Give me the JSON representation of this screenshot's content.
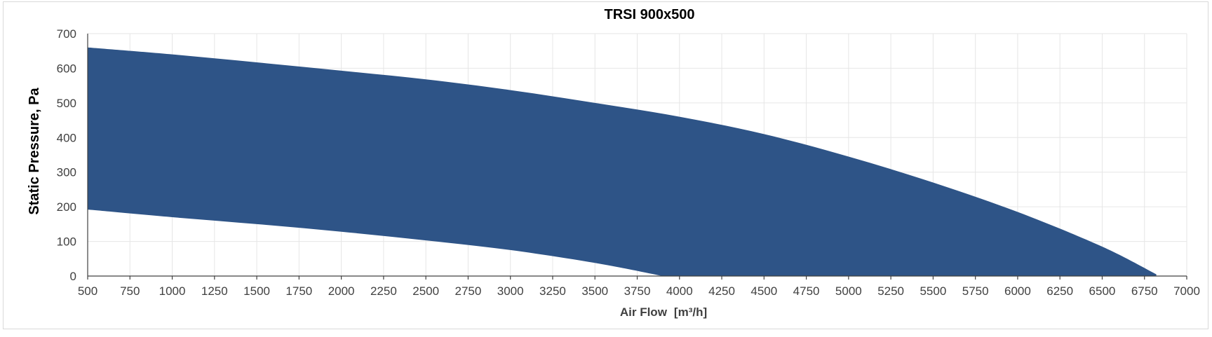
{
  "chart_data": {
    "type": "area",
    "title": "TRSI 900x500",
    "xlabel_main": "Air Flow",
    "xlabel_unit": "[m³/h]",
    "ylabel": "Static Pressure, Pa",
    "xlim": [
      500,
      7000
    ],
    "ylim": [
      0,
      700
    ],
    "x_ticks": [
      500,
      750,
      1000,
      1250,
      1500,
      1750,
      2000,
      2250,
      2500,
      2750,
      3000,
      3250,
      3500,
      3750,
      4000,
      4250,
      4500,
      4750,
      5000,
      5250,
      5500,
      5750,
      6000,
      6250,
      6500,
      6750,
      7000
    ],
    "y_ticks": [
      0,
      100,
      200,
      300,
      400,
      500,
      600,
      700
    ],
    "grid": true,
    "fill_color": "#2e5487",
    "upper_boundary": {
      "x": [
        500,
        1000,
        1500,
        2000,
        2500,
        3000,
        3500,
        4000,
        4500,
        5000,
        5500,
        6000,
        6500,
        6820
      ],
      "y": [
        660,
        640,
        617,
        593,
        568,
        537,
        500,
        460,
        410,
        345,
        270,
        185,
        85,
        5
      ]
    },
    "lower_boundary": {
      "x": [
        500,
        1000,
        1500,
        2000,
        2500,
        3000,
        3500,
        3900
      ],
      "y": [
        192,
        170,
        150,
        128,
        103,
        75,
        38,
        0
      ]
    }
  }
}
